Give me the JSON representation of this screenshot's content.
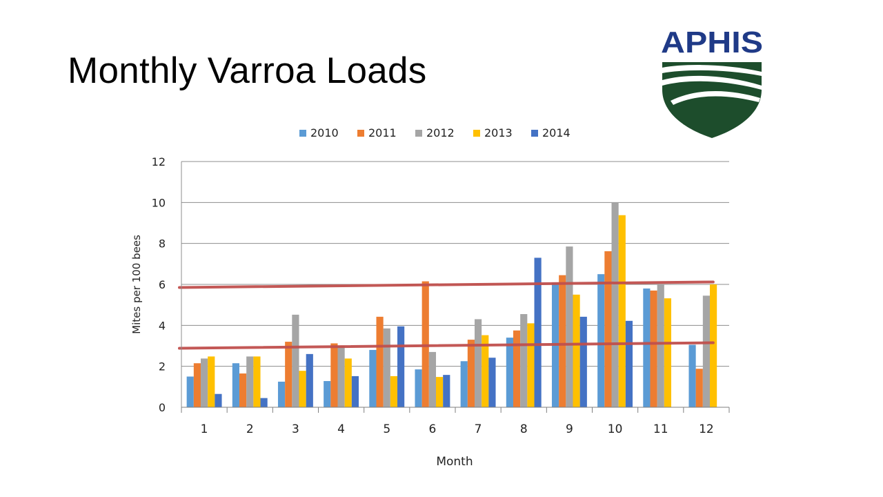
{
  "slide": {
    "title": "Monthly Varroa Loads"
  },
  "logo": {
    "text": "APHIS",
    "primary_color": "#1F3A87",
    "secondary_color": "#1D4D2C"
  },
  "chart_data": {
    "type": "bar",
    "title": "",
    "xlabel": "Month",
    "ylabel": "Mites per 100 bees",
    "ylim": [
      0,
      12
    ],
    "yticks": [
      0,
      2,
      4,
      6,
      8,
      10,
      12
    ],
    "grid": true,
    "legend_position": "top",
    "categories": [
      "1",
      "2",
      "3",
      "4",
      "5",
      "6",
      "7",
      "8",
      "9",
      "10",
      "11",
      "12"
    ],
    "series": [
      {
        "name": "2010",
        "color": "#5B9BD5",
        "values": [
          1.5,
          2.15,
          1.25,
          1.28,
          2.8,
          1.85,
          2.25,
          3.4,
          6.1,
          6.5,
          5.8,
          3.05
        ]
      },
      {
        "name": "2011",
        "color": "#ED7D31",
        "values": [
          2.15,
          1.65,
          3.2,
          3.12,
          4.42,
          6.15,
          3.3,
          3.75,
          6.45,
          7.62,
          5.7,
          1.88
        ]
      },
      {
        "name": "2012",
        "color": "#A5A5A5",
        "values": [
          2.38,
          2.48,
          4.52,
          3.0,
          3.85,
          2.7,
          4.3,
          4.55,
          7.85,
          10.0,
          6.0,
          5.45
        ]
      },
      {
        "name": "2013",
        "color": "#FFC000",
        "values": [
          2.48,
          2.48,
          1.78,
          2.38,
          1.52,
          1.48,
          3.52,
          4.1,
          5.5,
          9.38,
          5.32,
          6.0
        ]
      },
      {
        "name": "2014",
        "color": "#4472C4",
        "values": [
          0.65,
          0.45,
          2.6,
          1.52,
          3.95,
          1.58,
          2.42,
          7.3,
          4.42,
          4.22,
          null,
          null
        ]
      }
    ],
    "trendlines": [
      {
        "color": "#C0504D",
        "start": {
          "x": "1",
          "y": 5.85
        },
        "end": {
          "x": "12",
          "y": 6.12
        }
      },
      {
        "color": "#C0504D",
        "start": {
          "x": "1",
          "y": 2.88
        },
        "end": {
          "x": "12",
          "y": 3.15
        }
      }
    ]
  }
}
